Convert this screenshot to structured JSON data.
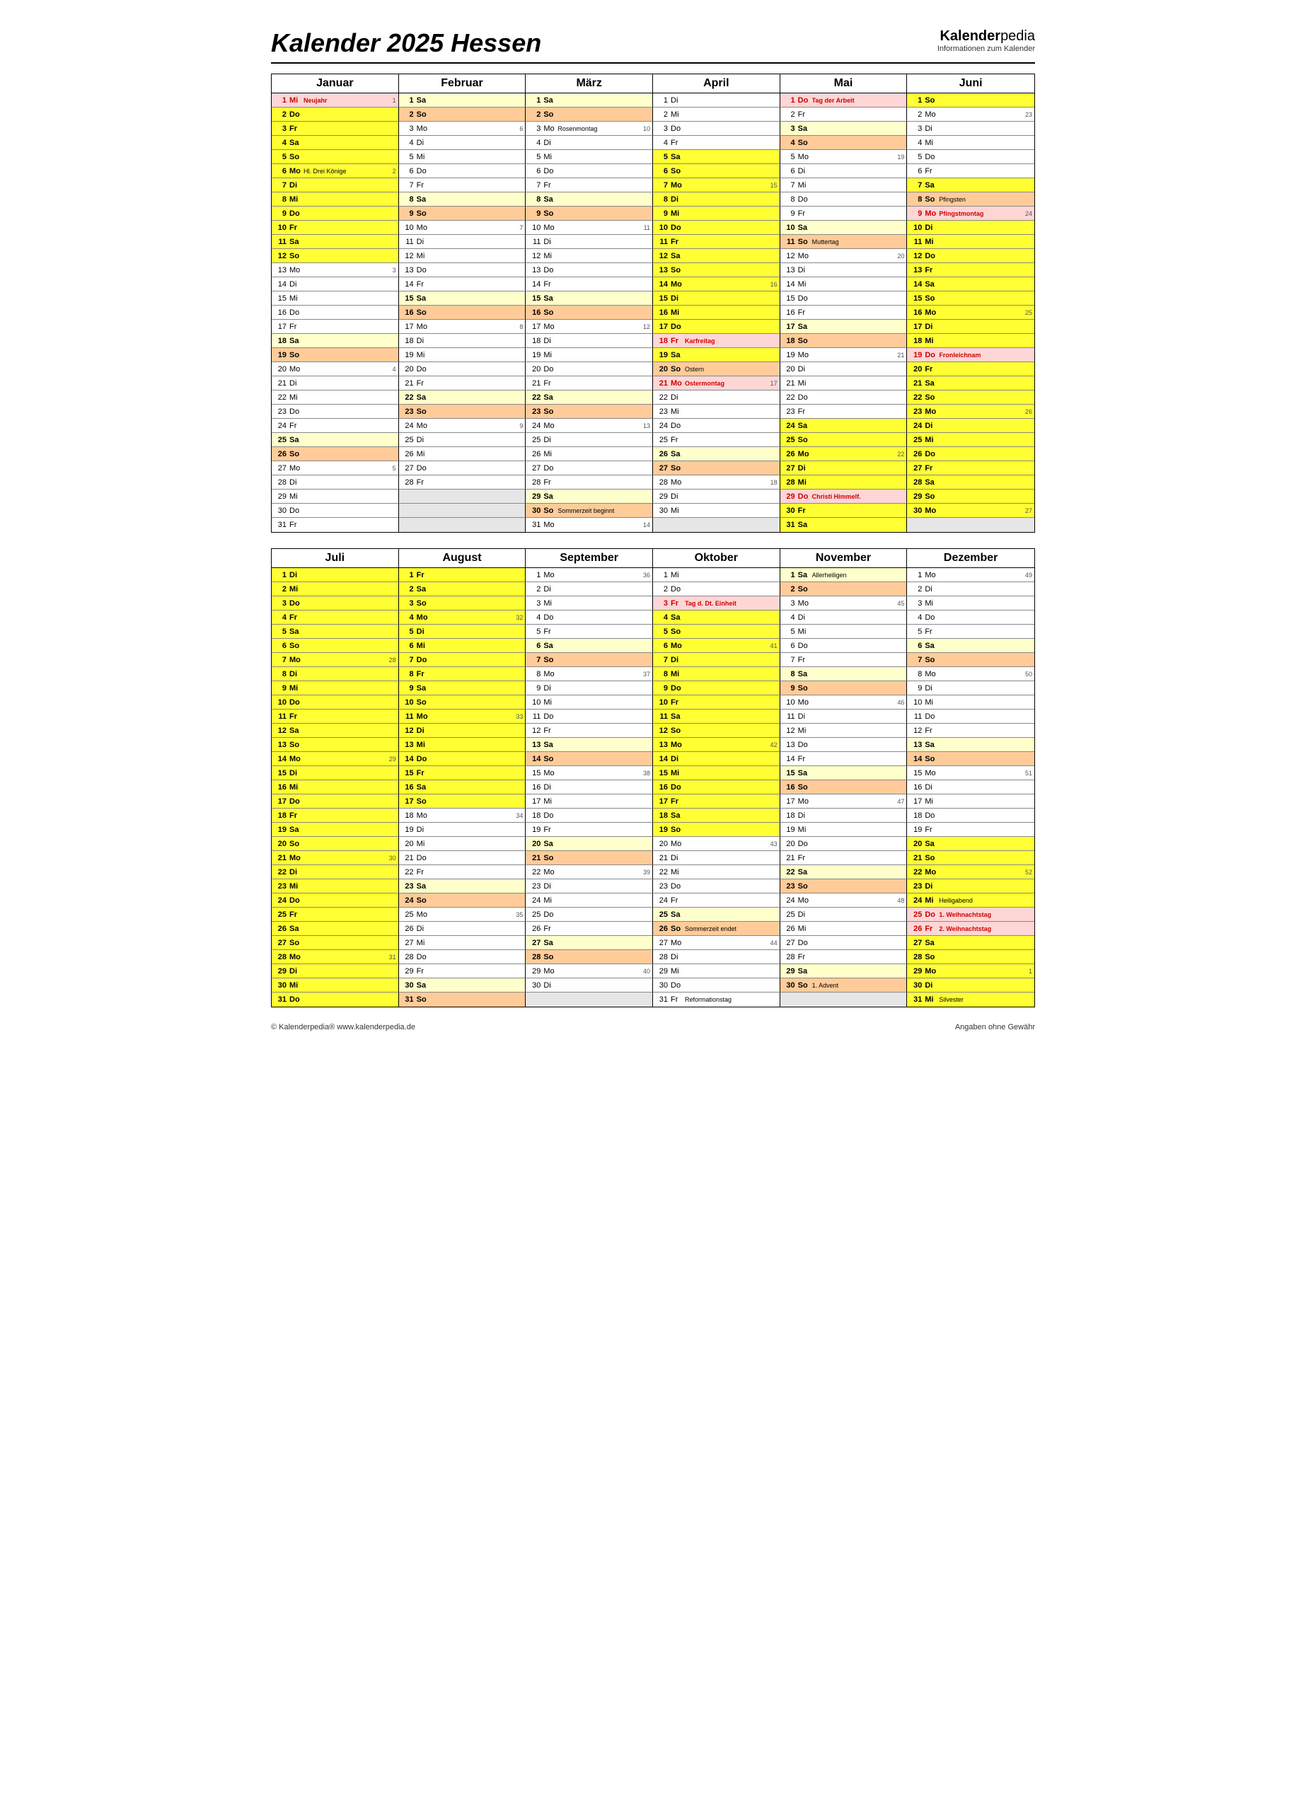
{
  "title": "Kalender 2025 Hessen",
  "brand": {
    "name": "Kalender",
    "suffix": "pedia",
    "sub": "Informationen zum Kalender"
  },
  "footer": {
    "left": "© Kalenderpedia®   www.kalenderpedia.de",
    "right": "Angaben ohne Gewähr"
  },
  "colors": {
    "yellow": "#ffff33",
    "lightyellow": "#ffffcc",
    "orange": "#ffcc99",
    "pink": "#ffd6d6",
    "empty": "#e6e6e6",
    "white": "#ffffff"
  },
  "weekdays": [
    "Mo",
    "Di",
    "Mi",
    "Do",
    "Fr",
    "Sa",
    "So"
  ],
  "monthBlocks": [
    {
      "months": [
        "Januar",
        "Februar",
        "März",
        "April",
        "Mai",
        "Juni"
      ],
      "rows": 31,
      "startDow": [
        2,
        5,
        5,
        1,
        3,
        6
      ],
      "lengths": [
        31,
        28,
        31,
        30,
        31,
        30
      ],
      "weeknums": {
        "0": {
          "1": 1,
          "6": 2,
          "13": 3,
          "20": 4,
          "27": 5
        },
        "1": {
          "3": 6,
          "10": 7,
          "17": 8,
          "24": 9
        },
        "2": {
          "3": 10,
          "10": 11,
          "17": 12,
          "24": 13,
          "31": 14
        },
        "3": {
          "7": 15,
          "14": 16,
          "21": 17,
          "28": 18
        },
        "4": {
          "5": 19,
          "12": 20,
          "19": 21,
          "26": 22
        },
        "5": {
          "2": 23,
          "9": 24,
          "16": 25,
          "23": 26,
          "30": 27
        }
      },
      "specials": {
        "0": {
          "1": {
            "l": "Neujahr",
            "c": "pink",
            "h": 1
          },
          "6": {
            "l": "Hl. Drei Könige",
            "c": "yellow"
          }
        },
        "2": {
          "3": {
            "l": "Rosenmontag"
          },
          "30": {
            "l": "Sommerzeit beginnt"
          }
        },
        "3": {
          "18": {
            "l": "Karfreitag",
            "c": "pink",
            "h": 1
          },
          "20": {
            "l": "Ostern",
            "c": "orange"
          },
          "21": {
            "l": "Ostermontag",
            "c": "pink",
            "h": 1
          }
        },
        "4": {
          "1": {
            "l": "Tag der Arbeit",
            "c": "pink",
            "h": 1
          },
          "11": {
            "l": "Muttertag",
            "c": "orange"
          },
          "29": {
            "l": "Christi Himmelf.",
            "c": "pink",
            "h": 1
          }
        },
        "5": {
          "8": {
            "l": "Pfingsten",
            "c": "orange"
          },
          "9": {
            "l": "Pfingstmontag",
            "c": "pink",
            "h": 1
          },
          "19": {
            "l": "Fronleichnam",
            "c": "pink",
            "h": 1
          }
        }
      },
      "vacations": {
        "0": {
          "from": 1,
          "to": 12
        },
        "3": {
          "from": 5,
          "to": 21
        },
        "4": {
          "from": 24,
          "to": 31
        },
        "5": {
          "from": 1,
          "to": 1
        }
      },
      "vacations2": {
        "5": {
          "from": 7,
          "to": 31
        }
      }
    },
    {
      "months": [
        "Juli",
        "August",
        "September",
        "Oktober",
        "November",
        "Dezember"
      ],
      "rows": 31,
      "startDow": [
        1,
        4,
        0,
        2,
        5,
        0
      ],
      "lengths": [
        31,
        31,
        30,
        31,
        30,
        31
      ],
      "weeknums": {
        "0": {
          "7": 28,
          "14": 29,
          "21": 30,
          "28": 31
        },
        "1": {
          "4": 32,
          "11": 33,
          "18": 34,
          "25": 35
        },
        "2": {
          "1": 36,
          "8": 37,
          "15": 38,
          "22": 39,
          "29": 40
        },
        "3": {
          "6": 41,
          "13": 42,
          "20": 43,
          "27": 44
        },
        "4": {
          "3": 45,
          "10": 46,
          "17": 47,
          "24": 48
        },
        "5": {
          "1": 49,
          "8": 50,
          "15": 51,
          "22": 52,
          "29": 1
        }
      },
      "specials": {
        "3": {
          "3": {
            "l": "Tag d. Dt. Einheit",
            "c": "pink",
            "h": 1
          },
          "26": {
            "l": "Sommerzeit endet",
            "c": "orange"
          },
          "31": {
            "l": "Reformationstag"
          }
        },
        "4": {
          "1": {
            "l": "Allerheiligen",
            "c": "lightyellow"
          },
          "30": {
            "l": "1. Advent",
            "c": "orange"
          }
        },
        "5": {
          "24": {
            "l": "Heiligabend",
            "c": "yellow"
          },
          "25": {
            "l": "1. Weihnachtstag",
            "c": "pink",
            "h": 1
          },
          "26": {
            "l": "2. Weihnachtstag",
            "c": "pink",
            "h": 1
          },
          "31": {
            "l": "Silvester",
            "c": "yellow"
          }
        }
      },
      "vacations": {
        "0": {
          "from": 1,
          "to": 31
        },
        "1": {
          "from": 1,
          "to": 17
        },
        "3": {
          "from": 4,
          "to": 19
        },
        "5": {
          "from": 20,
          "to": 31
        }
      }
    }
  ]
}
